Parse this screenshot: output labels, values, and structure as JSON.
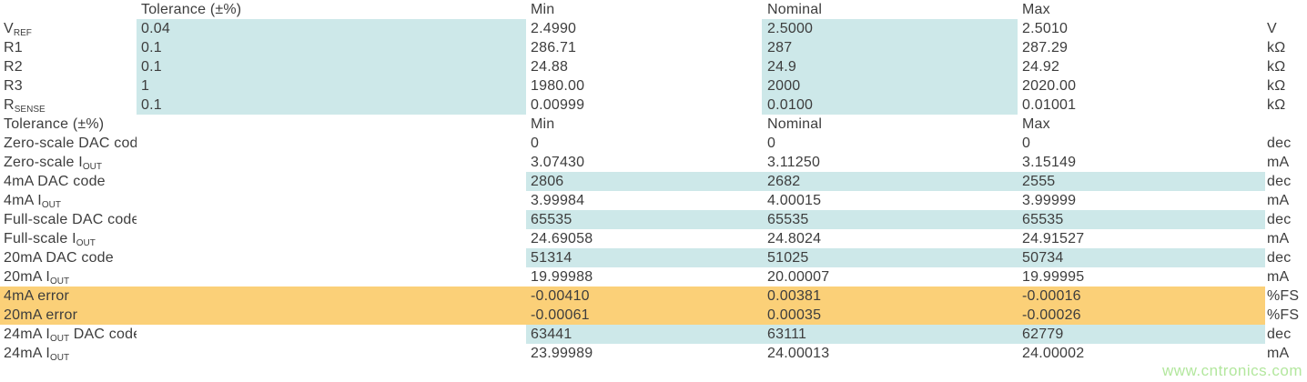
{
  "colors": {
    "text": "#3d3d3d",
    "hl_blue": "#cde8e9",
    "hl_orange": "#fbd078",
    "watermark": "#b3e79e",
    "bg": "#ffffff"
  },
  "watermark": {
    "text": "www.cntronics.com"
  },
  "table": {
    "columns": [
      "label",
      "tolerance",
      "min",
      "nominal",
      "max",
      "unit"
    ],
    "rows": [
      {
        "type": "header",
        "name": "components-header",
        "cells": {
          "label": "",
          "tolerance": "Tolerance (±%)",
          "min": "Min",
          "nominal": "Nominal",
          "max": "Max",
          "unit": ""
        }
      },
      {
        "type": "data",
        "name": "vref",
        "cells": {
          "label": [
            {
              "t": "V"
            },
            {
              "t": "REF",
              "sub": true
            }
          ],
          "tolerance": "0.04",
          "min": "2.4990",
          "nominal": "2.5000",
          "max": "2.5010",
          "unit": "V"
        },
        "highlight": {
          "color": "blue",
          "cells": [
            "tolerance",
            "nominal"
          ]
        }
      },
      {
        "type": "data",
        "name": "r1",
        "cells": {
          "label": "R1",
          "tolerance": "0.1",
          "min": "286.71",
          "nominal": "287",
          "max": "287.29",
          "unit": "kΩ"
        },
        "highlight": {
          "color": "blue",
          "cells": [
            "tolerance",
            "nominal"
          ]
        }
      },
      {
        "type": "data",
        "name": "r2",
        "cells": {
          "label": "R2",
          "tolerance": "0.1",
          "min": "24.88",
          "nominal": "24.9",
          "max": "24.92",
          "unit": "kΩ"
        },
        "highlight": {
          "color": "blue",
          "cells": [
            "tolerance",
            "nominal"
          ]
        }
      },
      {
        "type": "data",
        "name": "r3",
        "cells": {
          "label": "R3",
          "tolerance": "1",
          "min": "1980.00",
          "nominal": "2000",
          "max": "2020.00",
          "unit": "kΩ"
        },
        "highlight": {
          "color": "blue",
          "cells": [
            "tolerance",
            "nominal"
          ]
        }
      },
      {
        "type": "data",
        "name": "rsense",
        "cells": {
          "label": [
            {
              "t": "R"
            },
            {
              "t": "SENSE",
              "sub": true
            }
          ],
          "tolerance": "0.1",
          "min": "0.00999",
          "nominal": "0.0100",
          "max": "0.01001",
          "unit": "kΩ"
        },
        "highlight": {
          "color": "blue",
          "cells": [
            "tolerance",
            "nominal"
          ]
        }
      },
      {
        "type": "header",
        "name": "results-header",
        "cells": {
          "label": "Tolerance (±%)",
          "tolerance": "",
          "min": "Min",
          "nominal": "Nominal",
          "max": "Max",
          "unit": ""
        }
      },
      {
        "type": "data",
        "name": "zero-scale-dac-code",
        "cells": {
          "label": "Zero-scale DAC code",
          "tolerance": "",
          "min": "0",
          "nominal": "0",
          "max": "0",
          "unit": "dec"
        }
      },
      {
        "type": "data",
        "name": "zero-scale-iout",
        "cells": {
          "label": [
            {
              "t": "Zero-scale I"
            },
            {
              "t": "OUT",
              "sub": true
            }
          ],
          "tolerance": "",
          "min": "3.07430",
          "nominal": "3.11250",
          "max": "3.15149",
          "unit": "mA"
        }
      },
      {
        "type": "data",
        "name": "4ma-dac-code",
        "cells": {
          "label": "4mA DAC code",
          "tolerance": "",
          "min": "2806",
          "nominal": "2682",
          "max": "2555",
          "unit": "dec"
        },
        "highlight": {
          "color": "blue",
          "cells": [
            "min",
            "nominal",
            "max"
          ]
        }
      },
      {
        "type": "data",
        "name": "4ma-iout",
        "cells": {
          "label": [
            {
              "t": "4mA I"
            },
            {
              "t": "OUT",
              "sub": true
            }
          ],
          "tolerance": "",
          "min": "3.99984",
          "nominal": "4.00015",
          "max": "3.99999",
          "unit": "mA"
        }
      },
      {
        "type": "data",
        "name": "full-scale-dac-code",
        "cells": {
          "label": "Full-scale DAC code",
          "tolerance": "",
          "min": "65535",
          "nominal": "65535",
          "max": "65535",
          "unit": "dec"
        },
        "highlight": {
          "color": "blue",
          "cells": [
            "min",
            "nominal",
            "max"
          ]
        }
      },
      {
        "type": "data",
        "name": "full-scale-iout",
        "cells": {
          "label": [
            {
              "t": "Full-scale I"
            },
            {
              "t": "OUT",
              "sub": true
            }
          ],
          "tolerance": "",
          "min": "24.69058",
          "nominal": "24.8024",
          "max": "24.91527",
          "unit": "mA"
        }
      },
      {
        "type": "data",
        "name": "20ma-dac-code",
        "cells": {
          "label": "20mA DAC code",
          "tolerance": "",
          "min": "51314",
          "nominal": "51025",
          "max": "50734",
          "unit": "dec"
        },
        "highlight": {
          "color": "blue",
          "cells": [
            "min",
            "nominal",
            "max"
          ]
        }
      },
      {
        "type": "data",
        "name": "20ma-iout",
        "cells": {
          "label": [
            {
              "t": "20mA I"
            },
            {
              "t": "OUT",
              "sub": true
            }
          ],
          "tolerance": "",
          "min": "19.99988",
          "nominal": "20.00007",
          "max": "19.99995",
          "unit": "mA"
        }
      },
      {
        "type": "data",
        "name": "4ma-error",
        "cells": {
          "label": "4mA error",
          "tolerance": "",
          "min": "-0.00410",
          "nominal": "0.00381",
          "max": "-0.00016",
          "unit": "%FS"
        },
        "highlight": {
          "color": "orange",
          "cells": [
            "label",
            "tolerance",
            "min",
            "nominal",
            "max"
          ]
        }
      },
      {
        "type": "data",
        "name": "20ma-error",
        "cells": {
          "label": "20mA error",
          "tolerance": "",
          "min": "-0.00061",
          "nominal": "0.00035",
          "max": "-0.00026",
          "unit": "%FS"
        },
        "highlight": {
          "color": "orange",
          "cells": [
            "label",
            "tolerance",
            "min",
            "nominal",
            "max"
          ]
        }
      },
      {
        "type": "data",
        "name": "24ma-iout-dac-code",
        "cells": {
          "label": [
            {
              "t": "24mA I"
            },
            {
              "t": "OUT",
              "sub": true
            },
            {
              "t": " DAC code"
            }
          ],
          "tolerance": "",
          "min": "63441",
          "nominal": "63111",
          "max": "62779",
          "unit": "dec"
        },
        "highlight": {
          "color": "blue",
          "cells": [
            "min",
            "nominal",
            "max"
          ]
        }
      },
      {
        "type": "data",
        "name": "24ma-iout",
        "cells": {
          "label": [
            {
              "t": "24mA I"
            },
            {
              "t": "OUT",
              "sub": true
            }
          ],
          "tolerance": "",
          "min": "23.99989",
          "nominal": "24.00013",
          "max": "24.00002",
          "unit": "mA"
        }
      }
    ]
  }
}
